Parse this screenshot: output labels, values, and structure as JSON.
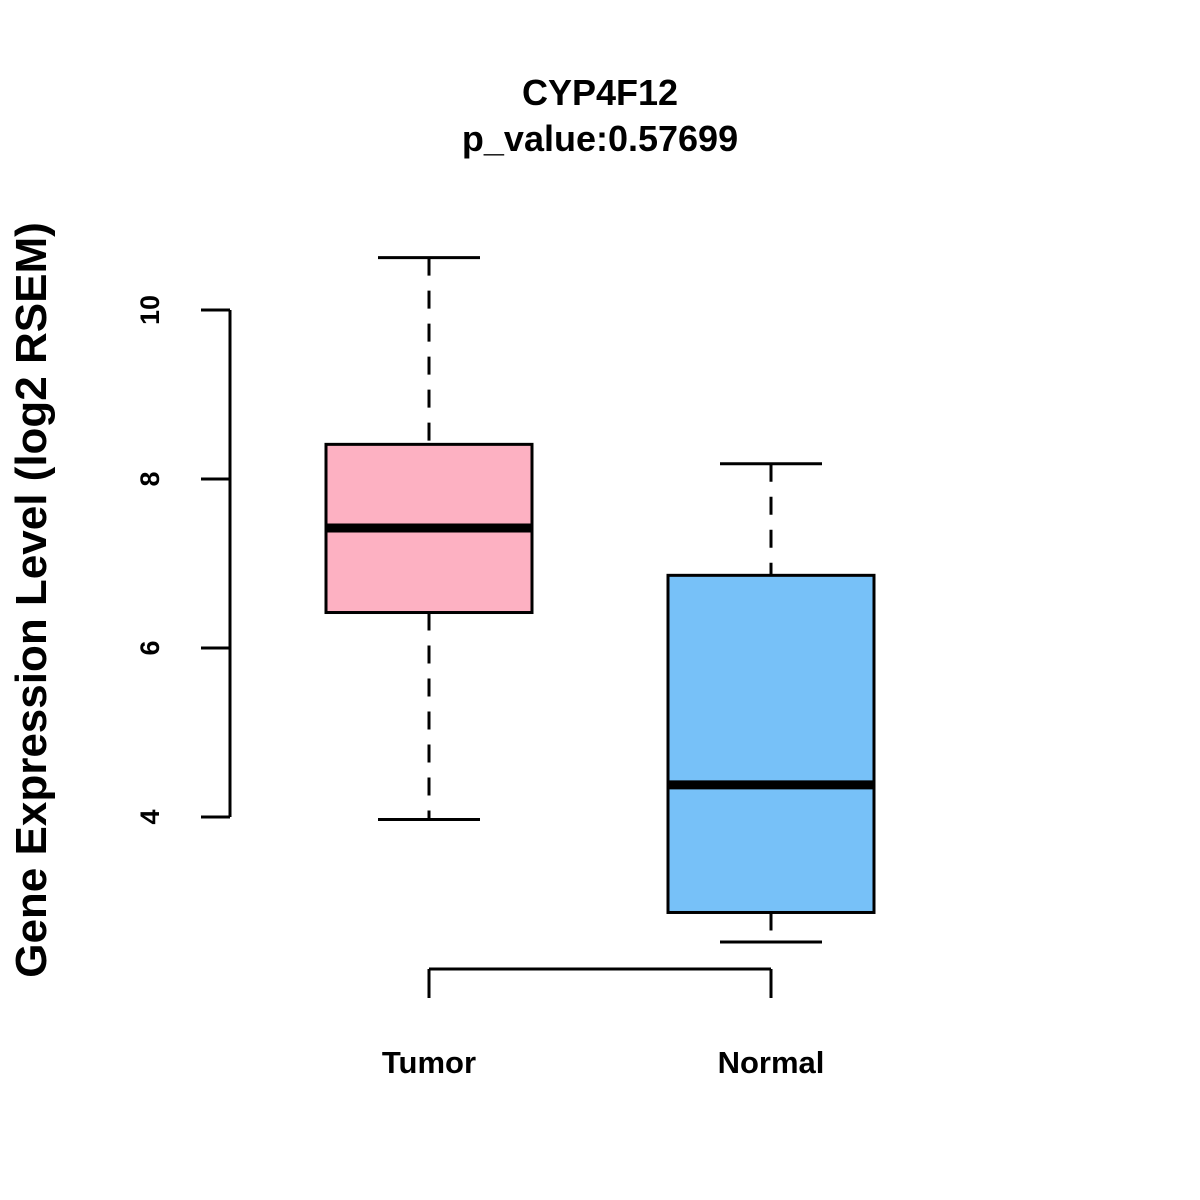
{
  "chart_data": {
    "type": "box",
    "title": "CYP4F12",
    "subtitle": "p_value:0.57699",
    "ylabel": "Gene Expression Level (log2 RSEM)",
    "xlabel": "",
    "y_ticks": [
      "4",
      "6",
      "8",
      "10"
    ],
    "y_tick_values": [
      4,
      6,
      8,
      10
    ],
    "grid": false,
    "categories": [
      "Tumor",
      "Normal"
    ],
    "boxes": [
      {
        "category": "Tumor",
        "whisker_low": 3.97,
        "q1": 6.42,
        "median": 7.42,
        "q3": 8.41,
        "whisker_high": 10.62,
        "color": "#FDB1C2"
      },
      {
        "category": "Normal",
        "whisker_low": 2.52,
        "q1": 2.87,
        "median": 4.38,
        "q3": 6.86,
        "whisker_high": 8.18,
        "color": "#77C1F8"
      }
    ]
  }
}
